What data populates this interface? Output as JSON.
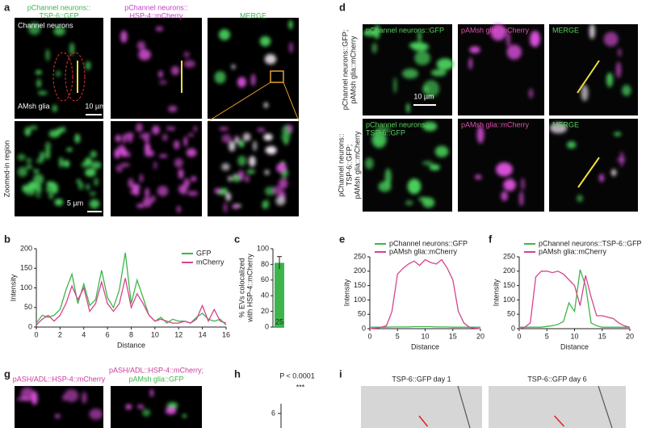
{
  "panel_labels": [
    "a",
    "b",
    "c",
    "d",
    "e",
    "f",
    "g",
    "h",
    "i"
  ],
  "panel_a": {
    "titles": [
      [
        "pChannel neurons::",
        "TSP-6::GFP"
      ],
      [
        "pChannel neurons::",
        "HSP-4::mCherry"
      ],
      [
        "MERGE"
      ]
    ],
    "annotations": [
      "Channel neurons",
      "AMsh glia"
    ],
    "scale_bars": [
      "10 µm",
      "5 µm"
    ],
    "row_label": "Zoomed-in region"
  },
  "panel_d": {
    "row_labels": [
      [
        "pChannel neurons::GFP;",
        "pAMsh glia::mCherry"
      ],
      [
        "pChannel neurons::",
        "TSP-6::GFP;",
        "pAMsh glia::mCherry"
      ]
    ],
    "titles": [
      [
        [
          "pChannel neurons::GFP"
        ],
        [
          "pAMsh glia::mCherry"
        ],
        [
          "MERGE"
        ]
      ],
      [
        [
          "pChannel neurons::",
          "TSP-6::GFP"
        ],
        [
          "pAMsh glia::mCherry"
        ],
        [
          "MERGE"
        ]
      ]
    ],
    "scale_bar": "10 µm"
  },
  "panel_g": {
    "titles": [
      [
        "pASH/ADL::HSP-4::mCherry"
      ],
      [
        "pASH/ADL::HSP-4::mCherry;",
        "pAMsh glia::GFP"
      ]
    ]
  },
  "panel_h": {
    "p_value": "P < 0.0001",
    "significance": "***",
    "yticks": [
      6
    ]
  },
  "panel_i": {
    "titles": [
      "TSP-6::GFP day 1",
      "TSP-6::GFP day 6"
    ]
  },
  "chart_data": [
    {
      "type": "line",
      "xlabel": "Distance",
      "ylabel": [
        "Intensity"
      ],
      "x": [
        0,
        0.5,
        1,
        1.5,
        2,
        2.5,
        3,
        3.5,
        4,
        4.5,
        5,
        5.5,
        6,
        6.5,
        7,
        7.5,
        8,
        8.5,
        9,
        9.5,
        10,
        10.5,
        11,
        11.5,
        12,
        12.5,
        13,
        13.5,
        14,
        14.5,
        15,
        15.5,
        16
      ],
      "series": [
        {
          "name": "GFP",
          "color": "#3cb64a",
          "values": [
            10,
            30,
            25,
            30,
            45,
            95,
            135,
            60,
            110,
            55,
            70,
            145,
            75,
            50,
            95,
            190,
            60,
            120,
            75,
            30,
            15,
            25,
            10,
            20,
            15,
            15,
            10,
            25,
            35,
            20,
            15,
            20,
            5
          ]
        },
        {
          "name": "mCherry",
          "color": "#d6448e",
          "values": [
            5,
            20,
            30,
            15,
            30,
            60,
            105,
            70,
            100,
            40,
            60,
            115,
            60,
            40,
            60,
            125,
            50,
            85,
            60,
            30,
            15,
            20,
            15,
            10,
            10,
            15,
            10,
            20,
            55,
            15,
            45,
            15,
            10
          ]
        }
      ],
      "xlim": [
        0,
        16
      ],
      "xticks": [
        0,
        2,
        4,
        6,
        8,
        10,
        12,
        14,
        16
      ],
      "ylim": [
        0,
        200
      ],
      "yticks": [
        0,
        50,
        100,
        150,
        200
      ],
      "legend": "upper right"
    },
    {
      "type": "bar",
      "ylabel": [
        "% EVs colocalized",
        "with HSP-4::mCherry"
      ],
      "values": [
        82
      ],
      "errors": [
        8
      ],
      "n_labels": [
        "25"
      ],
      "color": "#3cb64a",
      "ylim": [
        0,
        100
      ],
      "yticks": [
        0,
        20,
        40,
        60,
        80,
        100
      ]
    },
    {
      "type": "line",
      "xlabel": "Distance",
      "ylabel": [
        "Intensity"
      ],
      "x": [
        0,
        1,
        2,
        3,
        4,
        5,
        6,
        7,
        8,
        9,
        10,
        11,
        12,
        13,
        14,
        15,
        16,
        17,
        18,
        19,
        20
      ],
      "series": [
        {
          "name": "pChannel neurons::GFP",
          "color": "#3cb64a",
          "values": [
            5,
            5,
            5,
            5,
            6,
            6,
            6,
            6,
            7,
            7,
            7,
            7,
            6,
            6,
            6,
            5,
            5,
            5,
            5,
            5,
            5
          ]
        },
        {
          "name": "pAMsh glia::mCherry",
          "color": "#d6448e",
          "values": [
            0,
            2,
            5,
            10,
            60,
            190,
            210,
            225,
            235,
            220,
            240,
            230,
            225,
            240,
            210,
            170,
            60,
            20,
            5,
            2,
            0
          ]
        }
      ],
      "xlim": [
        0,
        20
      ],
      "xticks": [
        0,
        5,
        10,
        15,
        20
      ],
      "ylim": [
        0,
        250
      ],
      "yticks": [
        0,
        50,
        100,
        150,
        200,
        250
      ],
      "legend": "top"
    },
    {
      "type": "line",
      "xlabel": "Distance",
      "ylabel": [
        "Intensity"
      ],
      "x": [
        0,
        1,
        2,
        3,
        4,
        5,
        6,
        7,
        8,
        9,
        10,
        11,
        12,
        13,
        14,
        15,
        16,
        17,
        18,
        19,
        20
      ],
      "series": [
        {
          "name": "pChannel neurons::TSP-6::GFP",
          "color": "#3cb64a",
          "values": [
            5,
            5,
            5,
            5,
            5,
            8,
            10,
            15,
            25,
            90,
            60,
            205,
            150,
            20,
            10,
            5,
            5,
            5,
            5,
            5,
            5
          ]
        },
        {
          "name": "pAMsh glia::mCherry",
          "color": "#d6448e",
          "values": [
            0,
            5,
            20,
            180,
            200,
            200,
            195,
            200,
            190,
            170,
            150,
            80,
            185,
            110,
            45,
            45,
            40,
            35,
            20,
            10,
            5
          ]
        }
      ],
      "xlim": [
        0,
        20
      ],
      "xticks": [
        0,
        5,
        10,
        15,
        20
      ],
      "ylim": [
        0,
        250
      ],
      "yticks": [
        0,
        50,
        100,
        150,
        200,
        250
      ],
      "legend": "top"
    }
  ]
}
